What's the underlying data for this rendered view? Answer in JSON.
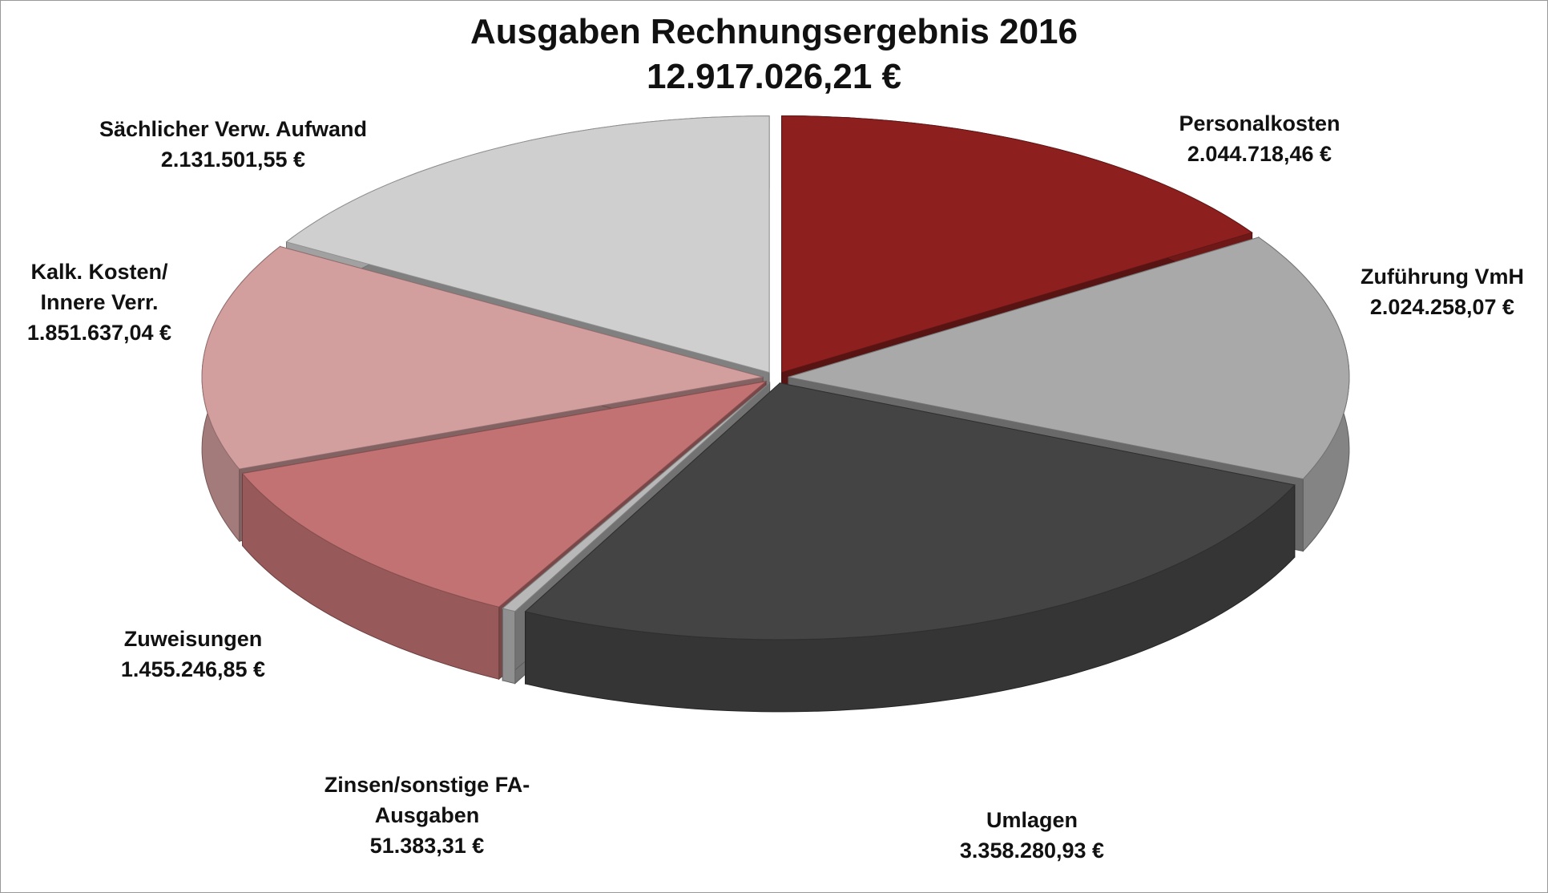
{
  "chart_data": {
    "type": "pie",
    "title": "Ausgaben Rechnungsergebnis 2016",
    "subtitle": "12.917.026,21 €",
    "categories": [
      "Personalkosten",
      "Zuführung VmH",
      "Umlagen",
      "Zinsen/sonstige FA-Ausgaben",
      "Zuweisungen",
      "Kalk. Kosten/ Innere Verr.",
      "Sächlicher Verw. Aufwand"
    ],
    "values": [
      2044718.46,
      2024258.07,
      3358280.93,
      51383.31,
      1455246.85,
      1851637.04,
      2131501.55
    ],
    "value_labels": [
      "2.044.718,46 €",
      "2.024.258,07 €",
      "3.358.280,93 €",
      "51.383,31 €",
      "1.455.246,85 €",
      "1.851.637,04 €",
      "2.131.501,55 €"
    ],
    "colors": [
      "#8e1f1f",
      "#a9a9a9",
      "#444444",
      "#b8b8b8",
      "#c27272",
      "#d29e9e",
      "#cfcfcf"
    ]
  }
}
